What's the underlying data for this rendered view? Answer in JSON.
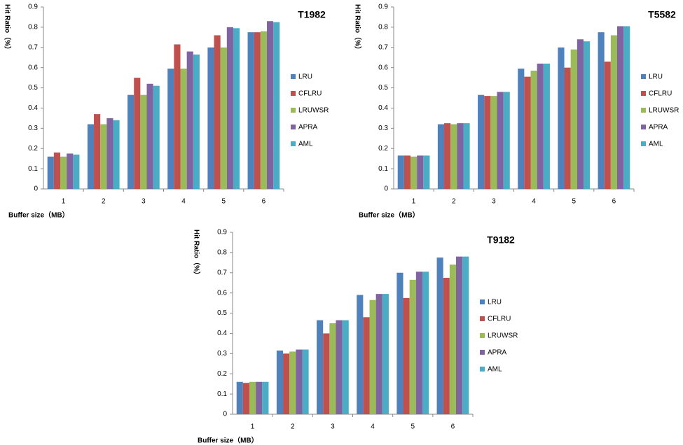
{
  "chart_data": [
    {
      "type": "bar",
      "title": "T1982",
      "y_label": "Hit Ratio（%）",
      "x_label": "Buffer size（MB）",
      "categories": [
        "1",
        "2",
        "3",
        "4",
        "5",
        "6"
      ],
      "series": [
        {
          "name": "LRU",
          "color": "#4f81bd",
          "values": [
            0.16,
            0.32,
            0.465,
            0.595,
            0.7,
            0.775
          ]
        },
        {
          "name": "CFLRU",
          "color": "#c0504d",
          "values": [
            0.18,
            0.37,
            0.55,
            0.715,
            0.76,
            0.775
          ]
        },
        {
          "name": "LRUWSR",
          "color": "#9bbb59",
          "values": [
            0.16,
            0.32,
            0.465,
            0.595,
            0.7,
            0.78
          ]
        },
        {
          "name": "APRA",
          "color": "#8064a2",
          "values": [
            0.175,
            0.35,
            0.52,
            0.68,
            0.8,
            0.83
          ]
        },
        {
          "name": "AML",
          "color": "#4bacc6",
          "values": [
            0.17,
            0.34,
            0.51,
            0.665,
            0.795,
            0.825
          ]
        }
      ],
      "ylim": [
        0,
        0.9
      ],
      "yticks": [
        0,
        0.1,
        0.2,
        0.3,
        0.4,
        0.5,
        0.6,
        0.7,
        0.8,
        0.9
      ]
    },
    {
      "type": "bar",
      "title": "T5582",
      "y_label": "Hit Ratio（%）",
      "x_label": "Buffer size（MB）",
      "categories": [
        "1",
        "2",
        "3",
        "4",
        "5",
        "6"
      ],
      "series": [
        {
          "name": "LRU",
          "color": "#4f81bd",
          "values": [
            0.165,
            0.32,
            0.465,
            0.595,
            0.7,
            0.775
          ]
        },
        {
          "name": "CFLRU",
          "color": "#c0504d",
          "values": [
            0.165,
            0.325,
            0.46,
            0.555,
            0.6,
            0.63
          ]
        },
        {
          "name": "LRUWSR",
          "color": "#9bbb59",
          "values": [
            0.16,
            0.32,
            0.46,
            0.585,
            0.69,
            0.76
          ]
        },
        {
          "name": "APRA",
          "color": "#8064a2",
          "values": [
            0.165,
            0.325,
            0.48,
            0.62,
            0.74,
            0.805
          ]
        },
        {
          "name": "AML",
          "color": "#4bacc6",
          "values": [
            0.165,
            0.325,
            0.48,
            0.62,
            0.73,
            0.805
          ]
        }
      ],
      "ylim": [
        0,
        0.9
      ],
      "yticks": [
        0,
        0.1,
        0.2,
        0.3,
        0.4,
        0.5,
        0.6,
        0.7,
        0.8,
        0.9
      ]
    },
    {
      "type": "bar",
      "title": "T9182",
      "y_label": "Hit Ratio（%）",
      "x_label": "Buffer size（MB）",
      "categories": [
        "1",
        "2",
        "3",
        "4",
        "5",
        "6"
      ],
      "series": [
        {
          "name": "LRU",
          "color": "#4f81bd",
          "values": [
            0.16,
            0.315,
            0.465,
            0.59,
            0.7,
            0.775
          ]
        },
        {
          "name": "CFLRU",
          "color": "#c0504d",
          "values": [
            0.155,
            0.3,
            0.4,
            0.48,
            0.575,
            0.675
          ]
        },
        {
          "name": "LRUWSR",
          "color": "#9bbb59",
          "values": [
            0.16,
            0.31,
            0.45,
            0.565,
            0.665,
            0.74
          ]
        },
        {
          "name": "APRA",
          "color": "#8064a2",
          "values": [
            0.16,
            0.32,
            0.465,
            0.595,
            0.705,
            0.78
          ]
        },
        {
          "name": "AML",
          "color": "#4bacc6",
          "values": [
            0.16,
            0.32,
            0.465,
            0.595,
            0.705,
            0.78
          ]
        }
      ],
      "ylim": [
        0,
        0.9
      ],
      "yticks": [
        0,
        0.1,
        0.2,
        0.3,
        0.4,
        0.5,
        0.6,
        0.7,
        0.8,
        0.9
      ]
    }
  ]
}
